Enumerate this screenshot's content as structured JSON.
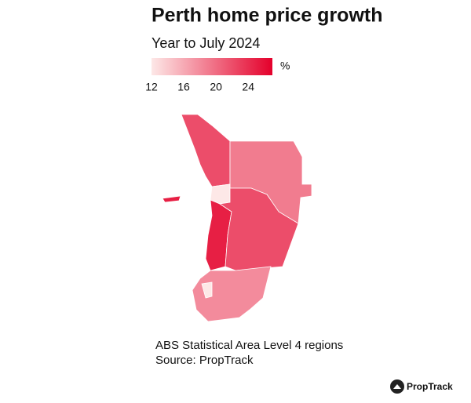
{
  "chart_data": {
    "type": "choropleth",
    "title": "Perth home price growth",
    "subtitle": "Year to July 2024",
    "legend_unit": "%",
    "legend_ticks": [
      12,
      16,
      20,
      24
    ],
    "colorlim": [
      12,
      27
    ],
    "color_low": "#fde8e7",
    "color_high": "#e4002b",
    "values": [
      22,
      19,
      12,
      25,
      25,
      22,
      18,
      12
    ],
    "notes": [
      "ABS Statistical Area Level 4 regions",
      "Source: PropTrack"
    ],
    "brand": "PropTrack"
  }
}
